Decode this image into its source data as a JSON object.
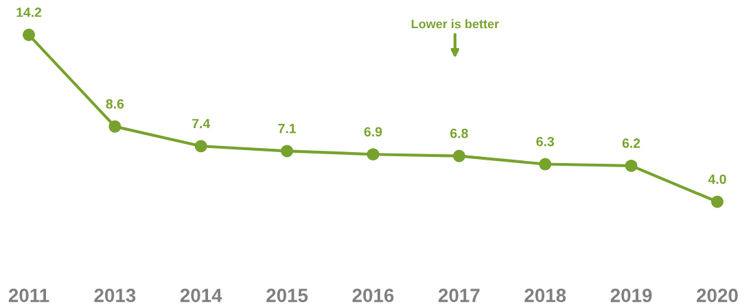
{
  "chart_data": {
    "type": "line",
    "categories": [
      "2011",
      "2013",
      "2014",
      "2015",
      "2016",
      "2017",
      "2018",
      "2019",
      "2020"
    ],
    "series": [
      {
        "color": "#77a22d",
        "values": [
          14.2,
          8.6,
          7.4,
          7.1,
          6.9,
          6.8,
          6.3,
          6.2,
          4.0
        ],
        "value_labels": [
          "14.2",
          "8.6",
          "7.4",
          "7.1",
          "6.9",
          "6.8",
          "6.3",
          "6.2",
          "4.0"
        ]
      }
    ],
    "marker": "circle",
    "line_style": "solid",
    "tick_labels": "x",
    "annotations": [
      "Lower is better"
    ]
  }
}
